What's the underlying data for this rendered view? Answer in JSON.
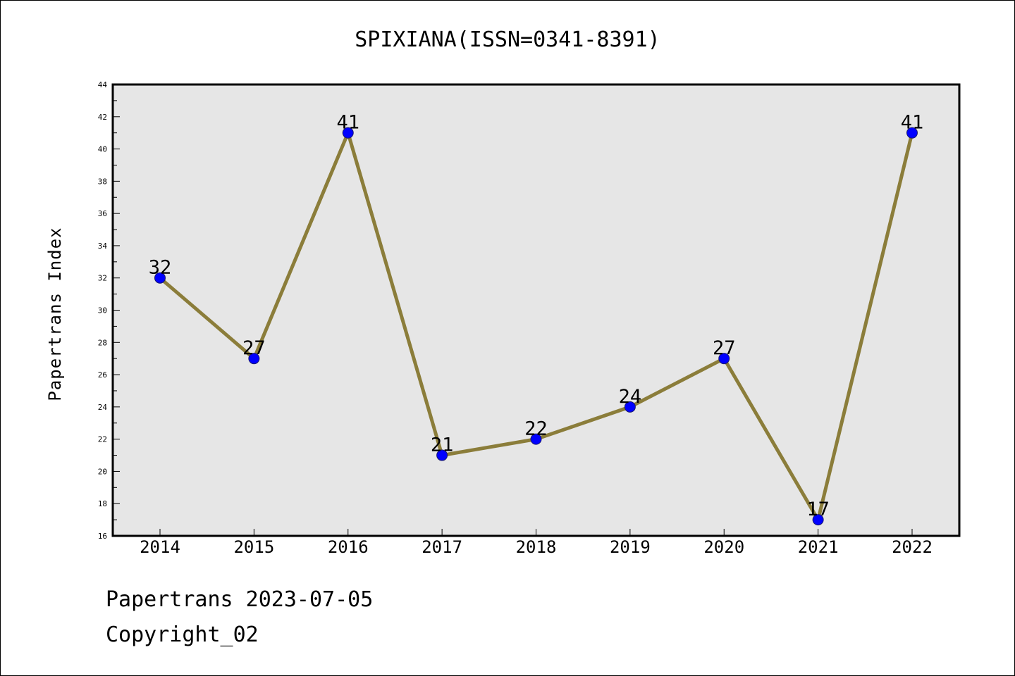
{
  "chart_data": {
    "type": "line",
    "title": "SPIXIANA(ISSN=0341-8391)",
    "xlabel": "",
    "ylabel": "Papertrans Index",
    "categories": [
      "2014",
      "2015",
      "2016",
      "2017",
      "2018",
      "2019",
      "2020",
      "2021",
      "2022"
    ],
    "series": [
      {
        "values": [
          32,
          27,
          41,
          21,
          22,
          24,
          27,
          17,
          41
        ]
      }
    ],
    "ylim": [
      16,
      44
    ],
    "yticks": [
      16,
      18,
      20,
      22,
      24,
      26,
      28,
      30,
      32,
      34,
      36,
      38,
      40,
      42,
      44
    ],
    "grid": false,
    "colors": {
      "line": "#8b7d3a",
      "marker": "#0000ff",
      "plot_background": "#e6e6e6"
    }
  },
  "footer": {
    "line1": "Papertrans 2023-07-05",
    "line2": "Copyright_02"
  }
}
